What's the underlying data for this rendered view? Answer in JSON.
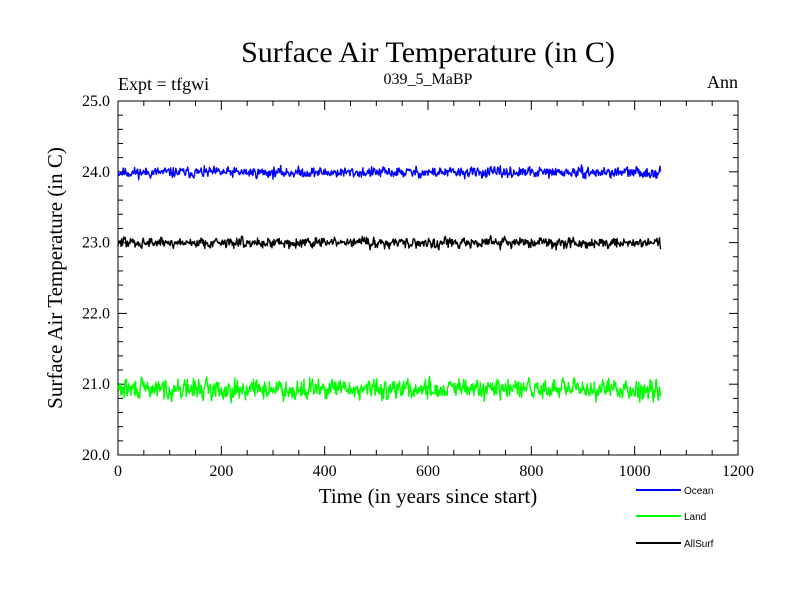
{
  "chart_data": {
    "type": "line",
    "title": "Surface Air Temperature (in C)",
    "subtitle": "039_5_MaBP",
    "left_label": "Expt = tfgwi",
    "right_label": "Ann",
    "xlabel": "Time (in years since start)",
    "ylabel": "Surface Air Temperature (in C)",
    "xlim": [
      0,
      1200
    ],
    "ylim": [
      20.0,
      25.0
    ],
    "x_ticks": [
      0,
      200,
      400,
      600,
      800,
      1000,
      1200
    ],
    "x_tick_labels": [
      "0",
      "200",
      "400",
      "600",
      "800",
      "1000",
      "1200"
    ],
    "y_ticks": [
      20.0,
      21.0,
      22.0,
      23.0,
      24.0,
      25.0
    ],
    "y_tick_labels": [
      "20.0",
      "21.0",
      "22.0",
      "23.0",
      "24.0",
      "25.0"
    ],
    "x_range": [
      0,
      1050
    ],
    "series": [
      {
        "name": "Ocean",
        "color": "#0000ff",
        "mean": 23.99,
        "noise": 0.1,
        "seed": 11
      },
      {
        "name": "Land",
        "color": "#00ff00",
        "mean": 20.93,
        "noise": 0.19,
        "seed": 29
      },
      {
        "name": "AllSurf",
        "color": "#000000",
        "mean": 23.0,
        "noise": 0.1,
        "seed": 47
      }
    ]
  }
}
